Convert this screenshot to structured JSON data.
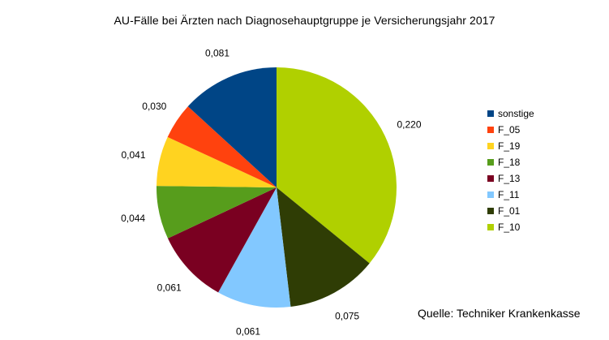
{
  "chart_data": {
    "type": "pie",
    "title": "AU-Fälle bei Ärzten nach Diagnosehauptgruppe je Versicherungsjahr 2017",
    "slices": [
      {
        "name": "F_10",
        "value": 0.22,
        "label": "0,220",
        "color": "#b0d000"
      },
      {
        "name": "F_01",
        "value": 0.075,
        "label": "0,075",
        "color": "#2f3d05"
      },
      {
        "name": "F_11",
        "value": 0.061,
        "label": "0,061",
        "color": "#82c8ff"
      },
      {
        "name": "F_13",
        "value": 0.061,
        "label": "0,061",
        "color": "#7a0021"
      },
      {
        "name": "F_18",
        "value": 0.044,
        "label": "0,044",
        "color": "#579d1c"
      },
      {
        "name": "F_19",
        "value": 0.041,
        "label": "0,041",
        "color": "#ffd320"
      },
      {
        "name": "F_05",
        "value": 0.03,
        "label": "0,030",
        "color": "#ff420e"
      },
      {
        "name": "sonstige",
        "value": 0.081,
        "label": "0,081",
        "color": "#004586"
      }
    ],
    "legend_order": [
      "sonstige",
      "F_05",
      "F_19",
      "F_18",
      "F_13",
      "F_11",
      "F_01",
      "F_10"
    ],
    "legend_position": "right",
    "start_angle": "12 o'clock",
    "direction": "clockwise"
  },
  "source_note": "Quelle: Techniker Krankenkasse"
}
